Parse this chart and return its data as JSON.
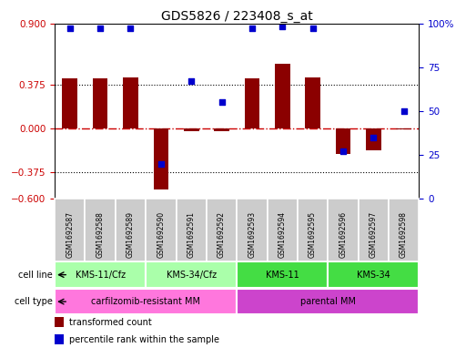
{
  "title": "GDS5826 / 223408_s_at",
  "samples": [
    "GSM1692587",
    "GSM1692588",
    "GSM1692589",
    "GSM1692590",
    "GSM1692591",
    "GSM1692592",
    "GSM1692593",
    "GSM1692594",
    "GSM1692595",
    "GSM1692596",
    "GSM1692597",
    "GSM1692598"
  ],
  "transformed_count": [
    0.43,
    0.43,
    0.44,
    -0.52,
    -0.02,
    -0.02,
    0.43,
    0.55,
    0.44,
    -0.22,
    -0.19,
    -0.01
  ],
  "percentile_rank": [
    97,
    97,
    97,
    20,
    67,
    55,
    97,
    98,
    97,
    27,
    35,
    50
  ],
  "ylim_left": [
    -0.6,
    0.9
  ],
  "ylim_right": [
    0,
    100
  ],
  "yticks_left": [
    -0.6,
    -0.375,
    0,
    0.375,
    0.9
  ],
  "yticks_right": [
    0,
    25,
    50,
    75,
    100
  ],
  "bar_color": "#8B0000",
  "dot_color": "#0000CD",
  "hline_color": "#CC0000",
  "cell_line_groups": [
    {
      "label": "KMS-11/Cfz",
      "start": 0,
      "end": 2,
      "color": "#AAFFAA"
    },
    {
      "label": "KMS-34/Cfz",
      "start": 3,
      "end": 5,
      "color": "#AAFFAA"
    },
    {
      "label": "KMS-11",
      "start": 6,
      "end": 8,
      "color": "#44DD44"
    },
    {
      "label": "KMS-34",
      "start": 9,
      "end": 11,
      "color": "#44DD44"
    }
  ],
  "cell_type_groups": [
    {
      "label": "carfilzomib-resistant MM",
      "start": 0,
      "end": 5,
      "color": "#FF77DD"
    },
    {
      "label": "parental MM",
      "start": 6,
      "end": 11,
      "color": "#CC44CC"
    }
  ],
  "legend_items": [
    {
      "label": "transformed count",
      "color": "#8B0000"
    },
    {
      "label": "percentile rank within the sample",
      "color": "#0000CD"
    }
  ],
  "title_fontsize": 10
}
